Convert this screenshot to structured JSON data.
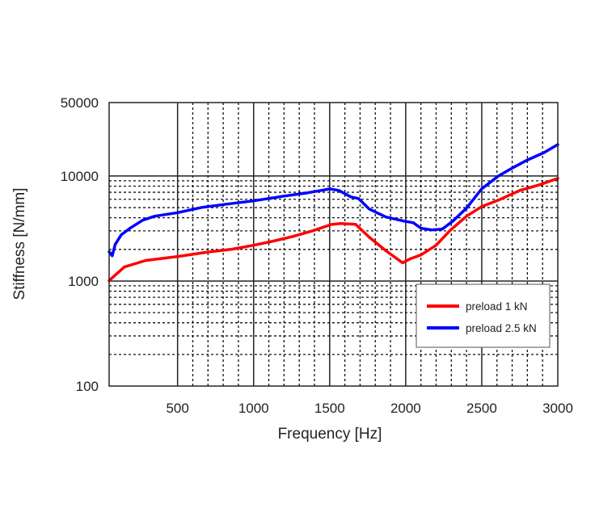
{
  "chart_data": {
    "type": "line",
    "title": "",
    "xlabel": "Frequency [Hz]",
    "ylabel": "Stiffness [N/mm]",
    "xlim": [
      50,
      3000
    ],
    "ylim": [
      100,
      50000
    ],
    "yscale": "log",
    "grid": true,
    "legend_position": "lower-right",
    "xticks": [
      500,
      1000,
      1500,
      2000,
      2500,
      3000
    ],
    "xtick_labels": [
      "500",
      "1000",
      "1500",
      "2000",
      "2500",
      "3000"
    ],
    "yticks": [
      100,
      1000,
      10000,
      50000
    ],
    "ytick_labels": [
      "100",
      "1000",
      "10000",
      "50000"
    ],
    "series": [
      {
        "name": "preload 1 kN",
        "color": "#ff0000",
        "points": [
          [
            50,
            1010
          ],
          [
            150,
            1360
          ],
          [
            290,
            1570
          ],
          [
            500,
            1710
          ],
          [
            680,
            1870
          ],
          [
            860,
            2010
          ],
          [
            1000,
            2190
          ],
          [
            1130,
            2400
          ],
          [
            1260,
            2660
          ],
          [
            1390,
            3010
          ],
          [
            1510,
            3450
          ],
          [
            1570,
            3530
          ],
          [
            1670,
            3470
          ],
          [
            1760,
            2620
          ],
          [
            1870,
            1940
          ],
          [
            1980,
            1490
          ],
          [
            2030,
            1630
          ],
          [
            2100,
            1770
          ],
          [
            2200,
            2190
          ],
          [
            2290,
            3010
          ],
          [
            2400,
            4140
          ],
          [
            2500,
            5110
          ],
          [
            2610,
            5890
          ],
          [
            2750,
            7280
          ],
          [
            2880,
            8240
          ],
          [
            3000,
            9480
          ]
        ]
      },
      {
        "name": "preload 2.5 kN",
        "color": "#0000ff",
        "points": [
          [
            50,
            1900
          ],
          [
            70,
            1740
          ],
          [
            90,
            2230
          ],
          [
            130,
            2760
          ],
          [
            190,
            3200
          ],
          [
            270,
            3790
          ],
          [
            350,
            4140
          ],
          [
            500,
            4480
          ],
          [
            660,
            5020
          ],
          [
            820,
            5390
          ],
          [
            1000,
            5800
          ],
          [
            1200,
            6430
          ],
          [
            1350,
            6900
          ],
          [
            1460,
            7350
          ],
          [
            1500,
            7540
          ],
          [
            1560,
            7280
          ],
          [
            1640,
            6320
          ],
          [
            1690,
            6100
          ],
          [
            1760,
            4850
          ],
          [
            1870,
            4070
          ],
          [
            1990,
            3720
          ],
          [
            2050,
            3590
          ],
          [
            2100,
            3180
          ],
          [
            2170,
            3070
          ],
          [
            2240,
            3120
          ],
          [
            2310,
            3720
          ],
          [
            2400,
            4940
          ],
          [
            2500,
            7540
          ],
          [
            2610,
            10000
          ],
          [
            2700,
            11900
          ],
          [
            2800,
            14200
          ],
          [
            2910,
            16700
          ],
          [
            3000,
            19900
          ]
        ]
      }
    ]
  }
}
